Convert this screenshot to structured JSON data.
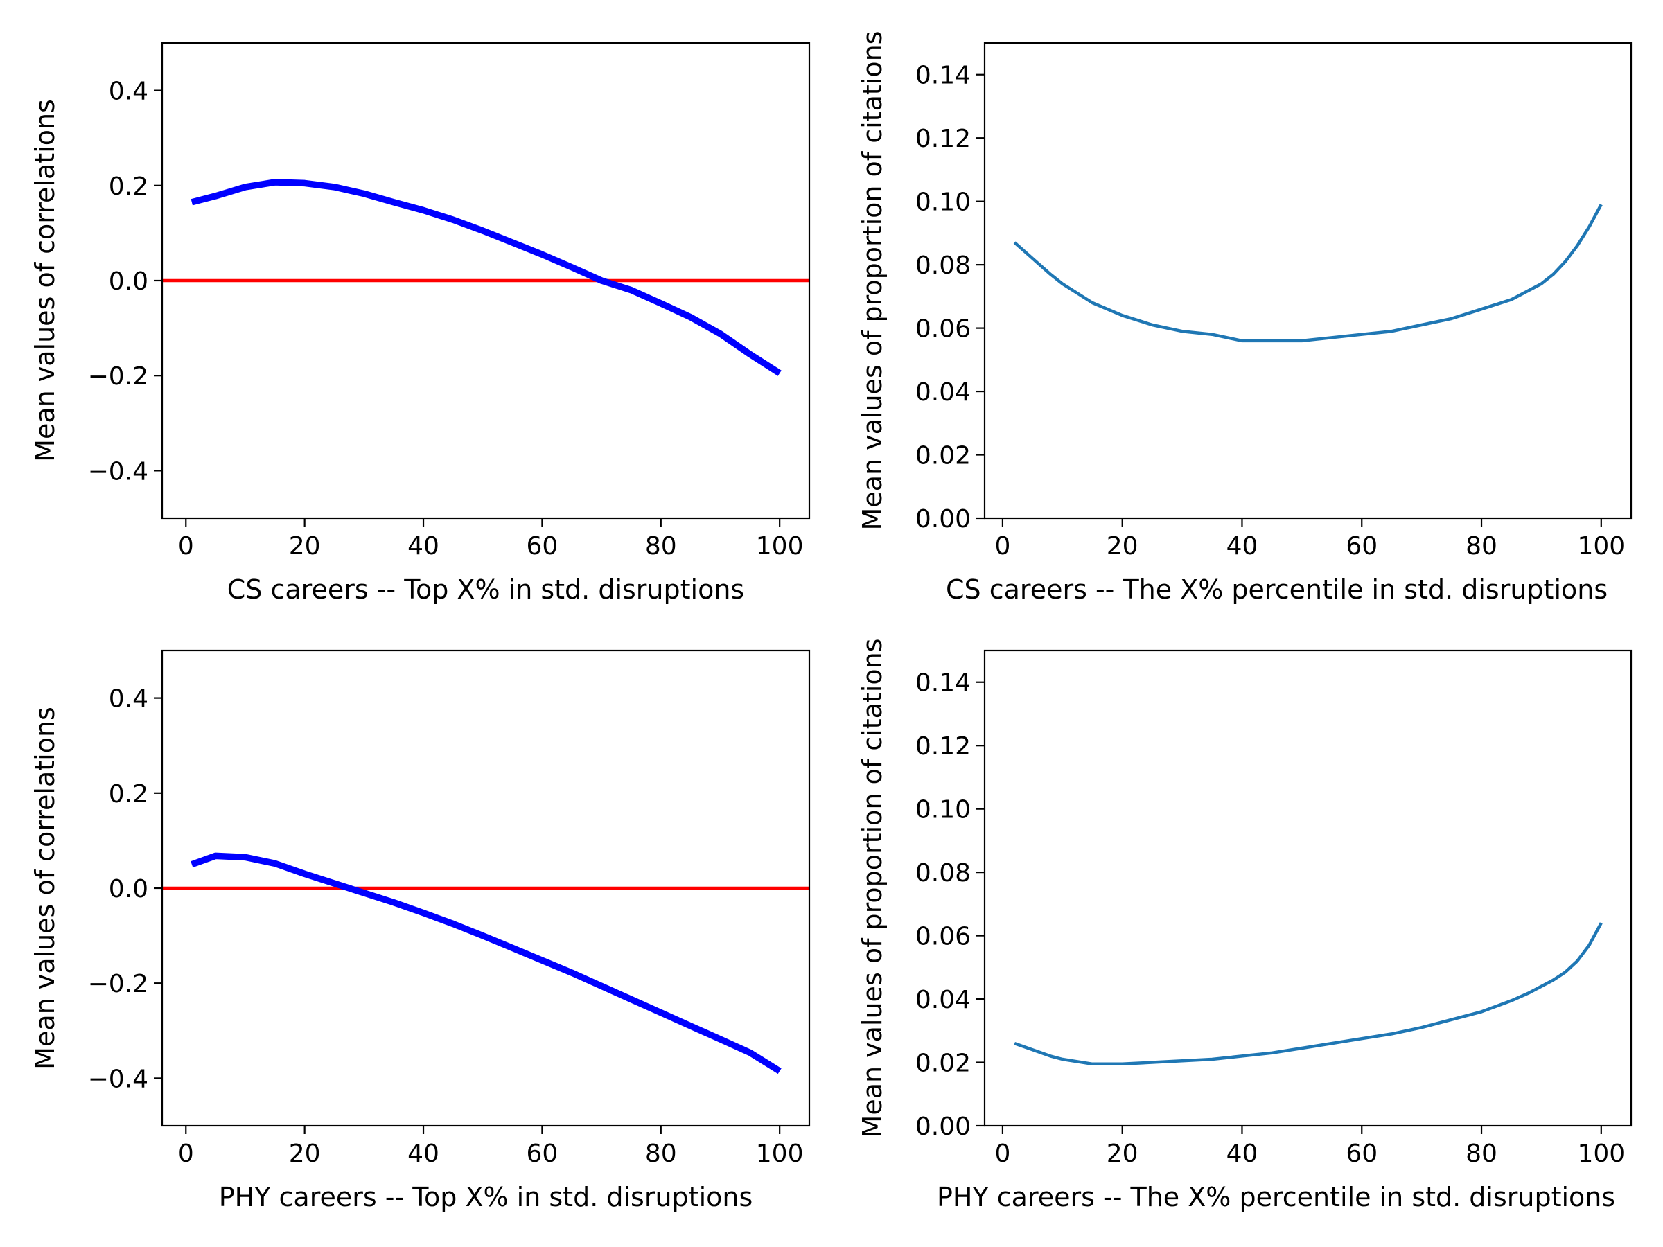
{
  "chart_data": [
    {
      "type": "line",
      "xlabel": "CS careers -- Top X% in std. disruptions",
      "ylabel": "Mean values of correlations",
      "xlim": [
        -4,
        105
      ],
      "ylim": [
        -0.5,
        0.5
      ],
      "xticks": [
        0,
        20,
        40,
        60,
        80,
        100
      ],
      "xtick_labels": [
        "0",
        "20",
        "40",
        "60",
        "80",
        "100"
      ],
      "yticks": [
        -0.4,
        -0.2,
        0.0,
        0.2,
        0.4
      ],
      "ytick_labels": [
        "−0.4",
        "−0.2",
        "0.0",
        "0.2",
        "0.4"
      ],
      "grid": false,
      "series": [
        {
          "color": "#0000ff",
          "x": [
            1,
            5,
            10,
            15,
            20,
            25,
            30,
            35,
            40,
            45,
            50,
            55,
            60,
            65,
            70,
            75,
            80,
            85,
            90,
            95,
            100
          ],
          "y": [
            0.165,
            0.178,
            0.197,
            0.207,
            0.205,
            0.197,
            0.183,
            0.165,
            0.148,
            0.128,
            0.105,
            0.08,
            0.055,
            0.028,
            0.0,
            -0.02,
            -0.048,
            -0.077,
            -0.112,
            -0.155,
            -0.195
          ]
        }
      ],
      "reference_lines": [
        {
          "y": 0.0,
          "color": "#ff0000"
        }
      ]
    },
    {
      "type": "line",
      "xlabel": "CS careers -- The X% percentile in std. disruptions",
      "ylabel": "Mean values of proportion of citations",
      "xlim": [
        -3,
        105
      ],
      "ylim": [
        0.0,
        0.15
      ],
      "xticks": [
        0,
        20,
        40,
        60,
        80,
        100
      ],
      "xtick_labels": [
        "0",
        "20",
        "40",
        "60",
        "80",
        "100"
      ],
      "yticks": [
        0.0,
        0.02,
        0.04,
        0.06,
        0.08,
        0.1,
        0.12,
        0.14
      ],
      "ytick_labels": [
        "0.00",
        "0.02",
        "0.04",
        "0.06",
        "0.08",
        "0.10",
        "0.12",
        "0.14"
      ],
      "grid": false,
      "series": [
        {
          "color": "#1f77b4",
          "x": [
            2,
            5,
            8,
            10,
            15,
            20,
            25,
            30,
            35,
            40,
            45,
            50,
            55,
            60,
            65,
            70,
            75,
            80,
            85,
            88,
            90,
            92,
            94,
            96,
            98,
            100
          ],
          "y": [
            0.087,
            0.082,
            0.077,
            0.074,
            0.068,
            0.064,
            0.061,
            0.059,
            0.058,
            0.056,
            0.056,
            0.056,
            0.057,
            0.058,
            0.059,
            0.061,
            0.063,
            0.066,
            0.069,
            0.072,
            0.074,
            0.077,
            0.081,
            0.086,
            0.092,
            0.099
          ]
        }
      ]
    },
    {
      "type": "line",
      "xlabel": "PHY careers -- Top X% in std. disruptions",
      "ylabel": "Mean values of correlations",
      "xlim": [
        -4,
        105
      ],
      "ylim": [
        -0.5,
        0.5
      ],
      "xticks": [
        0,
        20,
        40,
        60,
        80,
        100
      ],
      "xtick_labels": [
        "0",
        "20",
        "40",
        "60",
        "80",
        "100"
      ],
      "yticks": [
        -0.4,
        -0.2,
        0.0,
        0.2,
        0.4
      ],
      "ytick_labels": [
        "−0.4",
        "−0.2",
        "0.0",
        "0.2",
        "0.4"
      ],
      "grid": false,
      "series": [
        {
          "color": "#0000ff",
          "x": [
            1,
            5,
            10,
            15,
            20,
            25,
            30,
            35,
            40,
            45,
            50,
            55,
            60,
            65,
            70,
            75,
            80,
            85,
            90,
            95,
            100
          ],
          "y": [
            0.05,
            0.068,
            0.065,
            0.052,
            0.03,
            0.01,
            -0.01,
            -0.03,
            -0.052,
            -0.075,
            -0.1,
            -0.126,
            -0.152,
            -0.178,
            -0.206,
            -0.234,
            -0.262,
            -0.29,
            -0.318,
            -0.346,
            -0.385
          ]
        }
      ],
      "reference_lines": [
        {
          "y": 0.0,
          "color": "#ff0000"
        }
      ]
    },
    {
      "type": "line",
      "xlabel": "PHY careers -- The X% percentile in std. disruptions",
      "ylabel": "Mean values of proportion of citations",
      "xlim": [
        -3,
        105
      ],
      "ylim": [
        0.0,
        0.15
      ],
      "xticks": [
        0,
        20,
        40,
        60,
        80,
        100
      ],
      "xtick_labels": [
        "0",
        "20",
        "40",
        "60",
        "80",
        "100"
      ],
      "yticks": [
        0.0,
        0.02,
        0.04,
        0.06,
        0.08,
        0.1,
        0.12,
        0.14
      ],
      "ytick_labels": [
        "0.00",
        "0.02",
        "0.04",
        "0.06",
        "0.08",
        "0.10",
        "0.12",
        "0.14"
      ],
      "grid": false,
      "series": [
        {
          "color": "#1f77b4",
          "x": [
            2,
            5,
            8,
            10,
            15,
            20,
            25,
            30,
            35,
            40,
            45,
            50,
            55,
            60,
            65,
            70,
            75,
            80,
            85,
            88,
            90,
            92,
            94,
            96,
            98,
            100
          ],
          "y": [
            0.026,
            0.024,
            0.022,
            0.021,
            0.0195,
            0.0195,
            0.02,
            0.0205,
            0.021,
            0.022,
            0.023,
            0.0245,
            0.026,
            0.0275,
            0.029,
            0.031,
            0.0335,
            0.036,
            0.0395,
            0.042,
            0.044,
            0.046,
            0.0485,
            0.052,
            0.057,
            0.064
          ]
        }
      ]
    }
  ]
}
